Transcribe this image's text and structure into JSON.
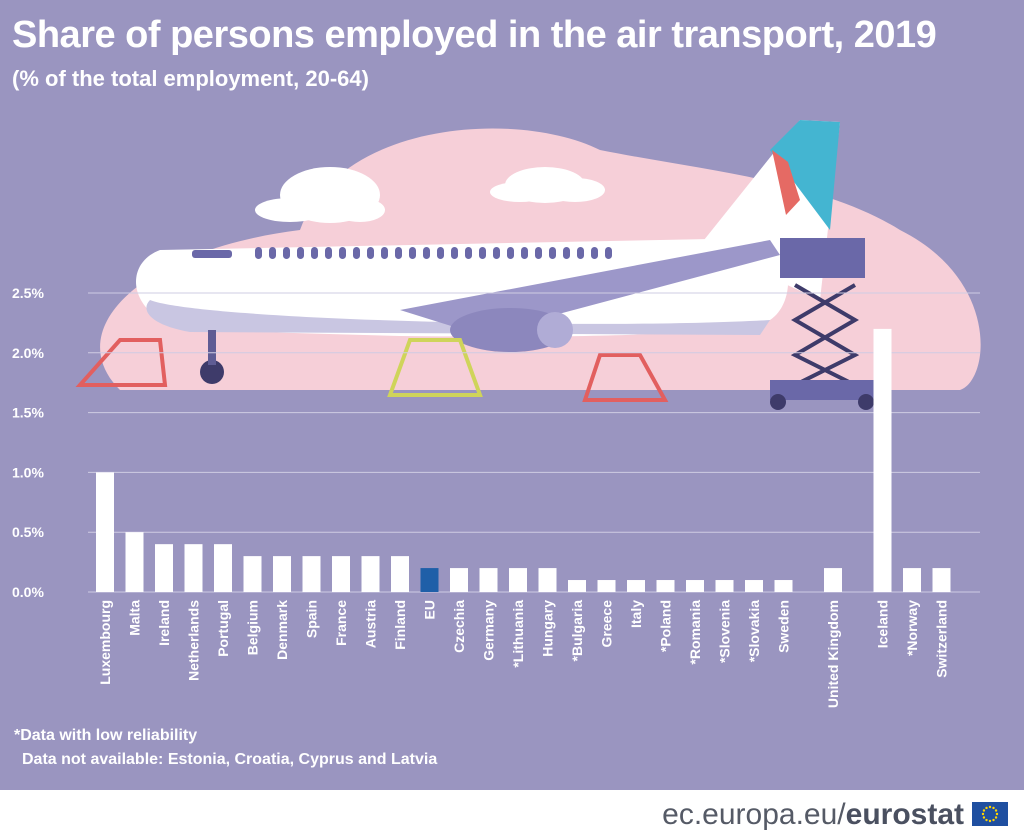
{
  "title": "Share of persons employed in the air transport, 2019",
  "subtitle": "(% of the total employment, 20-64)",
  "notes": {
    "low_reliability": "*Data with low reliability",
    "not_available": "Data not available: Estonia, Croatia, Cyprus and Latvia"
  },
  "footer": {
    "domain": "ec.europa.eu/",
    "brand": "eurostat"
  },
  "colors": {
    "background": "#9a95c0",
    "bar": "#ffffff",
    "eu_bar": "#1f5fa8",
    "grid": "#cfcce3"
  },
  "chart_data": {
    "type": "bar",
    "categories": [
      "Luxembourg",
      "Malta",
      "Ireland",
      "Netherlands",
      "Portugal",
      "Belgium",
      "Denmark",
      "Spain",
      "France",
      "Austria",
      "Finland",
      "EU",
      "Czechia",
      "Germany",
      "*Lithuania",
      "Hungary",
      "*Bulgaria",
      "Greece",
      "Italy",
      "*Poland",
      "*Romania",
      "*Slovenia",
      "*Slovakia",
      "Sweden",
      "United Kingdom",
      "Iceland",
      "*Norway",
      "Switzerland"
    ],
    "values": [
      1.0,
      0.5,
      0.4,
      0.4,
      0.4,
      0.3,
      0.3,
      0.3,
      0.3,
      0.3,
      0.3,
      0.2,
      0.2,
      0.2,
      0.2,
      0.2,
      0.1,
      0.1,
      0.1,
      0.1,
      0.1,
      0.1,
      0.1,
      0.1,
      0.2,
      2.2,
      0.2,
      0.2
    ],
    "highlight": "EU",
    "ylim": [
      0,
      2.5
    ],
    "yticks": [
      "0.0%",
      "0.5%",
      "1.0%",
      "1.5%",
      "2.0%",
      "2.5%"
    ],
    "grid": true,
    "xlabel": "",
    "ylabel": ""
  }
}
